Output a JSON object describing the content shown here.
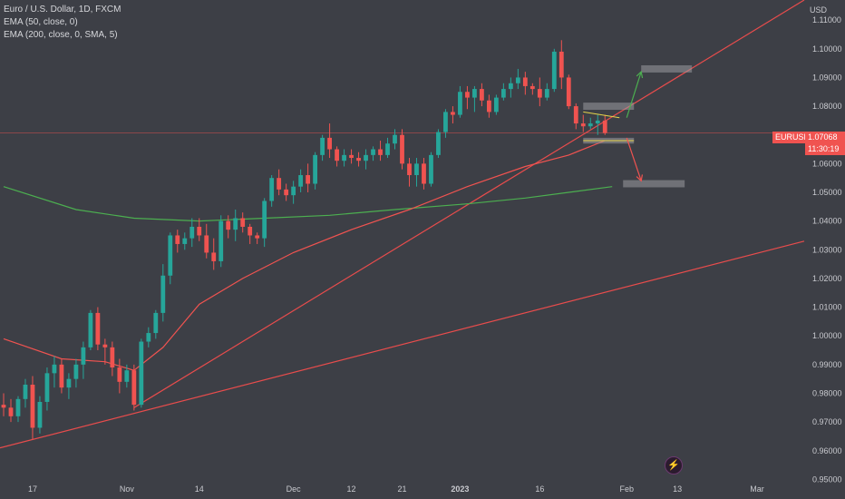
{
  "legend": {
    "line1": "Euro / U.S. Dollar, 1D, FXCM",
    "line2": "EMA (50, close, 0)",
    "line3": "EMA (200, close, 0, SMA, 5)"
  },
  "price_tag": {
    "symbol": "EURUSD",
    "price": "1.07068",
    "countdown": "11:30:19"
  },
  "colors": {
    "up": "#26a69a",
    "down": "#f05350",
    "ema50": "#f05350",
    "ema200": "#4caf50",
    "trend": "#e84c4c",
    "background": "#3d3f46"
  },
  "chart_data": {
    "type": "candlestick",
    "y_axis_title": "USD",
    "ylim": [
      0.9495,
      1.117
    ],
    "y_ticks": [
      "1.11000",
      "1.10000",
      "1.09000",
      "1.08000",
      "1.07000",
      "1.06000",
      "1.05000",
      "1.04000",
      "1.03000",
      "1.02000",
      "1.01000",
      "1.00000",
      "0.99000",
      "0.98000",
      "0.97000",
      "0.96000",
      "0.95000"
    ],
    "x_ticks": [
      "17",
      "Nov",
      "14",
      "Dec",
      "12",
      "21",
      "2023",
      "16",
      "Feb",
      "13",
      "Mar"
    ],
    "x_tick_positions": [
      4,
      17,
      27,
      40,
      48,
      55,
      63,
      74,
      86,
      93,
      104
    ],
    "index_range": [
      -0.5,
      110.5
    ],
    "candles": [
      [
        0.976,
        0.98,
        0.972,
        0.975
      ],
      [
        0.975,
        0.978,
        0.97,
        0.972
      ],
      [
        0.972,
        0.979,
        0.97,
        0.978
      ],
      [
        0.978,
        0.985,
        0.975,
        0.983
      ],
      [
        0.983,
        0.986,
        0.964,
        0.968
      ],
      [
        0.968,
        0.979,
        0.966,
        0.977
      ],
      [
        0.977,
        0.989,
        0.974,
        0.987
      ],
      [
        0.987,
        0.993,
        0.982,
        0.99
      ],
      [
        0.99,
        0.992,
        0.98,
        0.982
      ],
      [
        0.982,
        0.987,
        0.978,
        0.985
      ],
      [
        0.985,
        0.992,
        0.982,
        0.99
      ],
      [
        0.99,
        0.998,
        0.985,
        0.996
      ],
      [
        0.996,
        1.009,
        0.995,
        1.008
      ],
      [
        1.008,
        1.01,
        0.995,
        0.997
      ],
      [
        0.997,
        0.999,
        0.99,
        0.996
      ],
      [
        0.996,
        0.998,
        0.986,
        0.989
      ],
      [
        0.989,
        0.992,
        0.98,
        0.984
      ],
      [
        0.984,
        0.99,
        0.982,
        0.988
      ],
      [
        0.988,
        0.99,
        0.974,
        0.976
      ],
      [
        0.976,
        0.999,
        0.975,
        0.998
      ],
      [
        0.998,
        1.003,
        0.996,
        1.001
      ],
      [
        1.001,
        1.009,
        0.999,
        1.008
      ],
      [
        1.008,
        1.025,
        1.005,
        1.021
      ],
      [
        1.021,
        1.036,
        1.018,
        1.035
      ],
      [
        1.035,
        1.037,
        1.029,
        1.032
      ],
      [
        1.032,
        1.036,
        1.03,
        1.034
      ],
      [
        1.034,
        1.041,
        1.031,
        1.038
      ],
      [
        1.038,
        1.041,
        1.033,
        1.035
      ],
      [
        1.035,
        1.039,
        1.027,
        1.029
      ],
      [
        1.029,
        1.034,
        1.023,
        1.026
      ],
      [
        1.026,
        1.042,
        1.024,
        1.04
      ],
      [
        1.04,
        1.042,
        1.034,
        1.037
      ],
      [
        1.037,
        1.044,
        1.033,
        1.041
      ],
      [
        1.041,
        1.043,
        1.036,
        1.038
      ],
      [
        1.038,
        1.039,
        1.032,
        1.035
      ],
      [
        1.035,
        1.036,
        1.032,
        1.034
      ],
      [
        1.034,
        1.048,
        1.031,
        1.047
      ],
      [
        1.047,
        1.056,
        1.045,
        1.055
      ],
      [
        1.055,
        1.058,
        1.049,
        1.051
      ],
      [
        1.051,
        1.053,
        1.047,
        1.049
      ],
      [
        1.049,
        1.054,
        1.046,
        1.052
      ],
      [
        1.052,
        1.058,
        1.05,
        1.056
      ],
      [
        1.056,
        1.06,
        1.05,
        1.053
      ],
      [
        1.053,
        1.064,
        1.051,
        1.063
      ],
      [
        1.063,
        1.07,
        1.061,
        1.069
      ],
      [
        1.069,
        1.074,
        1.062,
        1.065
      ],
      [
        1.065,
        1.066,
        1.059,
        1.061
      ],
      [
        1.061,
        1.065,
        1.059,
        1.063
      ],
      [
        1.063,
        1.065,
        1.06,
        1.062
      ],
      [
        1.062,
        1.064,
        1.059,
        1.061
      ],
      [
        1.061,
        1.065,
        1.058,
        1.063
      ],
      [
        1.063,
        1.066,
        1.061,
        1.065
      ],
      [
        1.065,
        1.068,
        1.061,
        1.063
      ],
      [
        1.063,
        1.069,
        1.062,
        1.067
      ],
      [
        1.067,
        1.072,
        1.065,
        1.07
      ],
      [
        1.07,
        1.072,
        1.058,
        1.06
      ],
      [
        1.06,
        1.062,
        1.052,
        1.056
      ],
      [
        1.056,
        1.062,
        1.052,
        1.06
      ],
      [
        1.06,
        1.062,
        1.051,
        1.053
      ],
      [
        1.053,
        1.064,
        1.052,
        1.063
      ],
      [
        1.063,
        1.072,
        1.062,
        1.071
      ],
      [
        1.071,
        1.079,
        1.069,
        1.078
      ],
      [
        1.078,
        1.08,
        1.074,
        1.077
      ],
      [
        1.077,
        1.087,
        1.076,
        1.085
      ],
      [
        1.085,
        1.087,
        1.079,
        1.083
      ],
      [
        1.083,
        1.087,
        1.078,
        1.086
      ],
      [
        1.086,
        1.088,
        1.08,
        1.082
      ],
      [
        1.082,
        1.084,
        1.076,
        1.078
      ],
      [
        1.078,
        1.084,
        1.077,
        1.083
      ],
      [
        1.083,
        1.088,
        1.082,
        1.086
      ],
      [
        1.086,
        1.09,
        1.083,
        1.088
      ],
      [
        1.088,
        1.093,
        1.086,
        1.09
      ],
      [
        1.09,
        1.092,
        1.084,
        1.087
      ],
      [
        1.087,
        1.088,
        1.084,
        1.086
      ],
      [
        1.086,
        1.09,
        1.08,
        1.083
      ],
      [
        1.083,
        1.088,
        1.082,
        1.086
      ],
      [
        1.086,
        1.1,
        1.085,
        1.099
      ],
      [
        1.099,
        1.103,
        1.086,
        1.09
      ],
      [
        1.09,
        1.091,
        1.079,
        1.08
      ],
      [
        1.08,
        1.081,
        1.072,
        1.074
      ],
      [
        1.074,
        1.077,
        1.071,
        1.073
      ],
      [
        1.073,
        1.076,
        1.072,
        1.074
      ],
      [
        1.074,
        1.077,
        1.07,
        1.075
      ],
      [
        1.075,
        1.077,
        1.07,
        1.0707
      ]
    ],
    "ema50": [
      [
        0,
        0.999
      ],
      [
        8,
        0.992
      ],
      [
        14,
        0.991
      ],
      [
        18,
        0.988
      ],
      [
        22,
        0.996
      ],
      [
        27,
        1.011
      ],
      [
        33,
        1.02
      ],
      [
        40,
        1.029
      ],
      [
        48,
        1.037
      ],
      [
        56,
        1.044
      ],
      [
        64,
        1.052
      ],
      [
        72,
        1.059
      ],
      [
        78,
        1.063
      ],
      [
        83,
        1.068
      ]
    ],
    "ema200": [
      [
        0,
        1.052
      ],
      [
        10,
        1.044
      ],
      [
        18,
        1.041
      ],
      [
        27,
        1.04
      ],
      [
        36,
        1.041
      ],
      [
        45,
        1.042
      ],
      [
        54,
        1.044
      ],
      [
        64,
        1.046
      ],
      [
        72,
        1.048
      ],
      [
        78,
        1.05
      ],
      [
        84,
        1.052
      ]
    ],
    "trendlines": [
      {
        "from": [
          18,
          0.975
        ],
        "to": [
          110.5,
          1.117
        ]
      },
      {
        "from": [
          -0.5,
          0.961
        ],
        "to": [
          110.5,
          1.033
        ]
      }
    ],
    "zones": [
      {
        "x0": 88,
        "x1": 95,
        "y": 1.093,
        "h": 0.0025
      },
      {
        "x0": 80,
        "x1": 87,
        "y": 1.08,
        "h": 0.0025
      },
      {
        "x0": 80,
        "x1": 87,
        "y": 1.068,
        "h": 0.002
      },
      {
        "x0": 85.5,
        "x1": 94,
        "y": 1.053,
        "h": 0.0025
      }
    ],
    "arrows": [
      {
        "from": [
          86,
          1.076
        ],
        "to": [
          88,
          1.092
        ],
        "color": "#4caf50"
      },
      {
        "from": [
          86,
          1.069
        ],
        "to": [
          88,
          1.054
        ],
        "color": "#f05350"
      }
    ],
    "wedge_line": {
      "from": [
        80,
        1.078
      ],
      "to": [
        85,
        1.076
      ]
    },
    "current_price": 1.07068
  }
}
